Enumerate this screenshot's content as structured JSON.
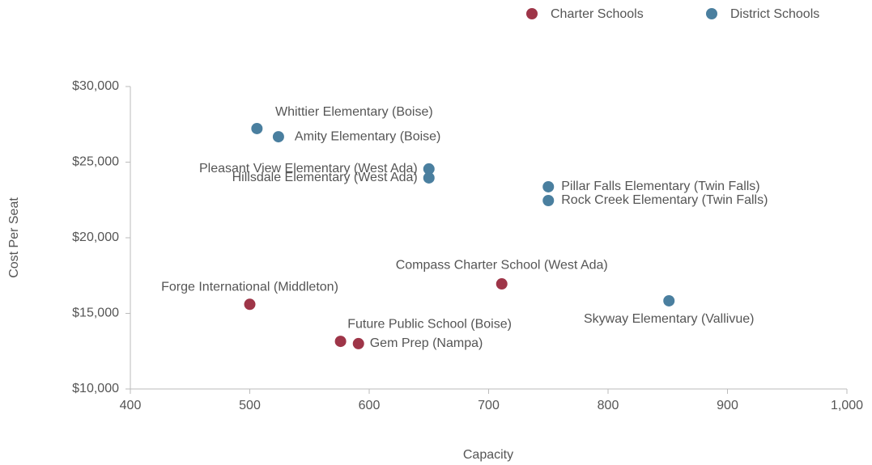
{
  "chart_data": {
    "type": "scatter",
    "x_label": "Capacity",
    "y_label": "Cost Per Seat",
    "xlim": [
      400,
      1000
    ],
    "xticks": [
      400,
      500,
      600,
      700,
      800,
      900,
      {
        "value": 1000,
        "label": "1,000"
      }
    ],
    "ylim": [
      10000,
      30000
    ],
    "yticks": [
      {
        "value": 10000,
        "label": "$10,000"
      },
      {
        "value": 15000,
        "label": "$15,000"
      },
      {
        "value": 20000,
        "label": "$20,000"
      },
      {
        "value": 25000,
        "label": "$25,000"
      },
      {
        "value": 30000,
        "label": "$30,000"
      }
    ],
    "grid": false,
    "legend": "top-right",
    "series": [
      {
        "name": "Charter Schools",
        "color": "#9e3548",
        "labels": [
          "Forge International (Middleton)",
          "Future Public School (Boise)",
          "Gem Prep (Nampa)",
          "Compass Charter School (West Ada)"
        ],
        "x": [
          500,
          576,
          591,
          711
        ],
        "values": [
          15600,
          13150,
          13000,
          16950
        ]
      },
      {
        "name": "District Schools",
        "color": "#4a7f9f",
        "labels": [
          "Whittier Elementary (Boise)",
          "Amity Elementary (Boise)",
          "Pleasant View Elementary (West Ada)",
          "Hillsdale Elementary (West Ada)",
          "Pillar Falls Elementary (Twin Falls)",
          "Rock Creek Elementary (Twin Falls)",
          "Skyway Elementary (Vallivue)"
        ],
        "x": [
          506,
          524,
          650,
          650,
          750,
          750,
          851
        ],
        "values": [
          27220,
          26680,
          24550,
          23960,
          23370,
          22460,
          15830
        ]
      }
    ]
  }
}
